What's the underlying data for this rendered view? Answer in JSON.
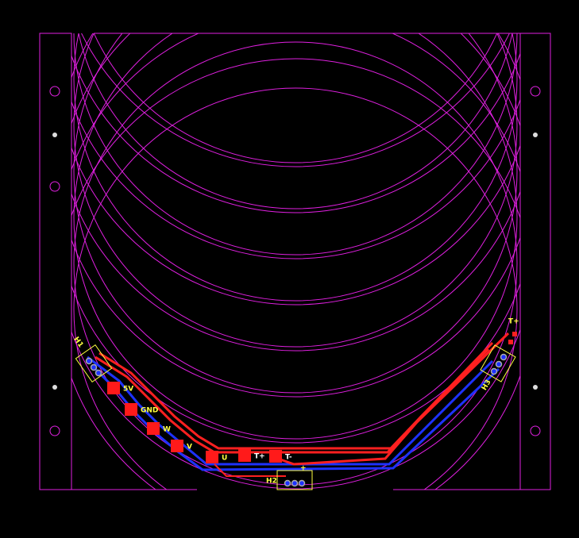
{
  "pads": [
    {
      "label": "5V"
    },
    {
      "label": "GND"
    },
    {
      "label": "W"
    },
    {
      "label": "V"
    },
    {
      "label": "U"
    },
    {
      "label": "T+"
    },
    {
      "label": "T-"
    }
  ],
  "components": [
    {
      "label": "H1"
    },
    {
      "label": "H2"
    },
    {
      "label": "H3"
    }
  ],
  "pin_marks": {
    "h2_plus": "+",
    "h3_tplus": "T+"
  }
}
